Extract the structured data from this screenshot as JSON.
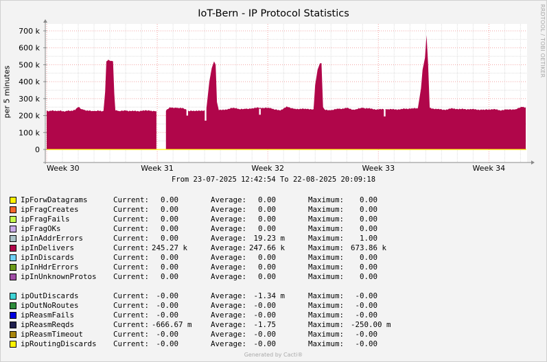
{
  "title": "IoT-Bern - IP Protocol Statistics",
  "vertical_label": "per 5 minutes",
  "watermark": "RRDTOOL / TOBI OETIKER",
  "range_text": "From 23-07-2025 12:42:54 To 22-08-2025 20:09:18",
  "generated": "Generated by Cacti®",
  "chart_data": {
    "type": "area",
    "title": "IoT-Bern - IP Protocol Statistics",
    "ylabel": "per 5 minutes",
    "xlabel": "",
    "ylim": [
      -50000,
      750000
    ],
    "y_ticks": [
      0,
      100000,
      200000,
      300000,
      400000,
      500000,
      600000,
      700000
    ],
    "y_tick_labels": [
      "0",
      "100 k",
      "200 k",
      "300 k",
      "400 k",
      "500 k",
      "600 k",
      "700 k"
    ],
    "x_tick_labels": [
      "Week 30",
      "Week 31",
      "Week 32",
      "Week 33",
      "Week 34"
    ],
    "x_tick_days": [
      0,
      7,
      14,
      21,
      28
    ],
    "x_range_days": [
      0,
      30.33
    ],
    "grid": true,
    "series": [
      {
        "name": "ipInDelivers",
        "color": "#B0064A",
        "points": [
          [
            0,
            228000
          ],
          [
            0.6,
            228000
          ],
          [
            1.2,
            226000
          ],
          [
            1.8,
            232000
          ],
          [
            2.0,
            250000
          ],
          [
            2.2,
            238000
          ],
          [
            2.5,
            228000
          ],
          [
            3.0,
            227000
          ],
          [
            3.6,
            228000
          ],
          [
            3.7,
            340000
          ],
          [
            3.78,
            520000
          ],
          [
            3.9,
            530000
          ],
          [
            4.05,
            522000
          ],
          [
            4.2,
            520000
          ],
          [
            4.28,
            330000
          ],
          [
            4.35,
            230000
          ],
          [
            4.6,
            226000
          ],
          [
            5.0,
            230000
          ],
          [
            5.5,
            226000
          ],
          [
            6.0,
            228000
          ],
          [
            6.5,
            230000
          ],
          [
            6.95,
            226000
          ],
          [
            7.1,
            228000
          ],
          [
            7.55,
            228000
          ],
          [
            7.8,
            250000
          ],
          [
            8.2,
            246000
          ],
          [
            8.6,
            245000
          ],
          [
            9.0,
            226000
          ],
          [
            9.5,
            230000
          ],
          [
            10.1,
            228000
          ],
          [
            10.3,
            400000
          ],
          [
            10.45,
            480000
          ],
          [
            10.6,
            520000
          ],
          [
            10.7,
            500000
          ],
          [
            10.78,
            280000
          ],
          [
            10.9,
            232000
          ],
          [
            11.3,
            236000
          ],
          [
            11.8,
            245000
          ],
          [
            12.2,
            238000
          ],
          [
            12.6,
            240000
          ],
          [
            13.0,
            244000
          ],
          [
            13.5,
            246000
          ],
          [
            14.0,
            246000
          ],
          [
            14.4,
            236000
          ],
          [
            14.8,
            230000
          ],
          [
            15.2,
            255000
          ],
          [
            15.6,
            242000
          ],
          [
            16.0,
            238000
          ],
          [
            16.5,
            240000
          ],
          [
            16.9,
            238000
          ],
          [
            17.0,
            380000
          ],
          [
            17.15,
            470000
          ],
          [
            17.3,
            508000
          ],
          [
            17.4,
            510000
          ],
          [
            17.5,
            250000
          ],
          [
            17.6,
            236000
          ],
          [
            18.0,
            232000
          ],
          [
            18.5,
            240000
          ],
          [
            19.0,
            244000
          ],
          [
            19.5,
            234000
          ],
          [
            20.0,
            246000
          ],
          [
            20.5,
            240000
          ],
          [
            21.0,
            236000
          ],
          [
            21.5,
            238000
          ],
          [
            22.0,
            236000
          ],
          [
            22.5,
            238000
          ],
          [
            23.0,
            242000
          ],
          [
            23.5,
            242000
          ],
          [
            23.7,
            360000
          ],
          [
            23.8,
            470000
          ],
          [
            23.95,
            540000
          ],
          [
            24.05,
            675000
          ],
          [
            24.15,
            500000
          ],
          [
            24.25,
            246000
          ],
          [
            24.7,
            238000
          ],
          [
            25.2,
            234000
          ],
          [
            25.7,
            242000
          ],
          [
            26.2,
            238000
          ],
          [
            26.7,
            238000
          ],
          [
            27.2,
            236000
          ],
          [
            27.7,
            234000
          ],
          [
            28.2,
            238000
          ],
          [
            28.7,
            232000
          ],
          [
            29.2,
            236000
          ],
          [
            29.7,
            238000
          ],
          [
            30.1,
            250000
          ],
          [
            30.33,
            248000
          ]
        ],
        "gaps_days": [
          [
            7.0,
            7.35
          ]
        ],
        "dips": [
          [
            10.06,
            170000
          ],
          [
            21.4,
            195000
          ],
          [
            13.5,
            205000
          ],
          [
            8.9,
            200000
          ]
        ]
      },
      {
        "name": "IpForwDatagrams",
        "color": "#FFF200",
        "note_values": "0"
      }
    ]
  },
  "legend_groups": [
    [
      {
        "color": "#FFF200",
        "name": "IpForwDatagrams",
        "current": "  0.00",
        "average": "  0.00",
        "maximum": "  0.00"
      },
      {
        "color": "#F5652B",
        "name": "ipFragCreates",
        "current": "  0.00",
        "average": "  0.00",
        "maximum": "  0.00"
      },
      {
        "color": "#C6F94C",
        "name": "ipFragFails",
        "current": "  0.00",
        "average": "  0.00",
        "maximum": "  0.00"
      },
      {
        "color": "#C6A9E6",
        "name": "ipFragOKs",
        "current": "  0.00",
        "average": "  0.00",
        "maximum": "  0.00"
      },
      {
        "color": "#A9C1C8",
        "name": "ipInAddrErrors",
        "current": "  0.00",
        "average": " 19.23 m",
        "maximum": "  1.00"
      },
      {
        "color": "#B0064A",
        "name": "ipInDelivers",
        "current": "245.27 k",
        "average": "247.66 k",
        "maximum": "673.86 k"
      },
      {
        "color": "#6FD1F5",
        "name": "ipInDiscards",
        "current": "  0.00",
        "average": "  0.00",
        "maximum": "  0.00"
      },
      {
        "color": "#6B9A1A",
        "name": "ipInHdrErrors",
        "current": "  0.00",
        "average": "  0.00",
        "maximum": "  0.00"
      },
      {
        "color": "#A04CA6",
        "name": "ipInUnknownProtos",
        "current": "  0.00",
        "average": "  0.00",
        "maximum": "  0.00"
      }
    ],
    [
      {
        "color": "#3FD4D6",
        "name": "ipOutDiscards",
        "current": " -0.00",
        "average": " -1.34 m",
        "maximum": " -0.00"
      },
      {
        "color": "#2E8C3B",
        "name": "ipOutNoRoutes",
        "current": " -0.00",
        "average": " -0.00",
        "maximum": " -0.00"
      },
      {
        "color": "#0000E0",
        "name": "ipReasmFails",
        "current": " -0.00",
        "average": " -0.00",
        "maximum": " -0.00"
      },
      {
        "color": "#1E1E4E",
        "name": "ipReasmReqds",
        "current": "-666.67 m",
        "average": " -1.75",
        "maximum": "-250.00 m"
      },
      {
        "color": "#A8850D",
        "name": "ipReasmTimeout",
        "current": " -0.00",
        "average": " -0.00",
        "maximum": " -0.00"
      },
      {
        "color": "#FFF200",
        "name": "ipRoutingDiscards",
        "current": " -0.00",
        "average": " -0.00",
        "maximum": " -0.00"
      }
    ]
  ],
  "legend_labels": {
    "current": "Current:",
    "average": "Average:",
    "maximum": "Maximum:"
  }
}
